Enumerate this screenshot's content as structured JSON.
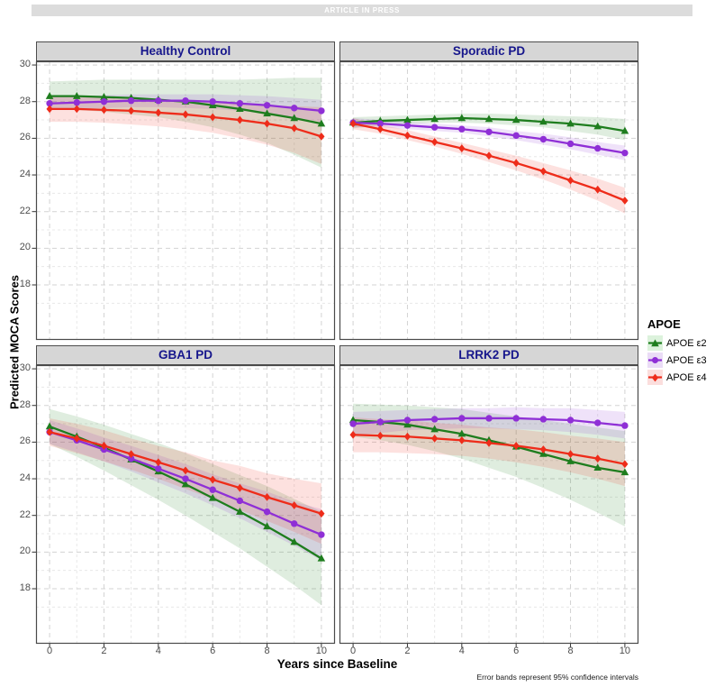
{
  "banner": {
    "text": "ARTICLE IN PRESS"
  },
  "chart_data": {
    "type": "line",
    "xlabel": "Years since Baseline",
    "ylabel": "Predicted MOCA Scores",
    "caption": "Error bands represent 95% confidence intervals",
    "x": [
      0,
      1,
      2,
      3,
      4,
      5,
      6,
      7,
      8,
      9,
      10
    ],
    "x_ticks": [
      0,
      2,
      4,
      6,
      8,
      10
    ],
    "y_ticks": [
      18,
      20,
      22,
      24,
      26,
      28,
      30
    ],
    "xlim": [
      -0.5,
      10.5
    ],
    "ylim": [
      15.0,
      30.2
    ],
    "grid": "dashed, major and minor, on white background",
    "error_band": "95% confidence interval ribbons around each line",
    "legend": {
      "title": "APOE",
      "position": "right",
      "entries": [
        {
          "id": "e2",
          "label": "APOE ε2",
          "color": "#1e7d1e",
          "key_fill": "#dcf2dc",
          "marker": "triangle"
        },
        {
          "id": "e3",
          "label": "APOE ε3",
          "color": "#8f2fd6",
          "key_fill": "#eadcf6",
          "marker": "circle"
        },
        {
          "id": "e4",
          "label": "APOE ε4",
          "color": "#ee2c1a",
          "key_fill": "#fbdedd",
          "marker": "diamond"
        }
      ]
    },
    "panels": [
      {
        "title": "Healthy Control",
        "series": [
          {
            "id": "e2",
            "values": [
              28.3,
              28.3,
              28.25,
              28.2,
              28.1,
              28.0,
              27.8,
              27.6,
              27.35,
              27.1,
              26.8
            ],
            "lower": [
              27.6,
              27.55,
              27.45,
              27.3,
              27.15,
              26.9,
              26.6,
              26.2,
              25.75,
              25.1,
              24.4
            ],
            "upper": [
              29.1,
              29.15,
              29.2,
              29.2,
              29.2,
              29.2,
              29.2,
              29.2,
              29.25,
              29.3,
              29.3
            ]
          },
          {
            "id": "e3",
            "values": [
              27.9,
              27.95,
              28.0,
              28.05,
              28.05,
              28.05,
              28.0,
              27.9,
              27.8,
              27.65,
              27.5
            ],
            "lower": [
              27.55,
              27.6,
              27.65,
              27.7,
              27.7,
              27.65,
              27.6,
              27.5,
              27.35,
              27.15,
              26.9
            ],
            "upper": [
              28.25,
              28.3,
              28.35,
              28.4,
              28.4,
              28.4,
              28.4,
              28.35,
              28.3,
              28.2,
              28.1
            ]
          },
          {
            "id": "e4",
            "values": [
              27.6,
              27.6,
              27.55,
              27.5,
              27.4,
              27.3,
              27.15,
              27.0,
              26.8,
              26.55,
              26.1
            ],
            "lower": [
              26.9,
              26.9,
              26.85,
              26.75,
              26.65,
              26.5,
              26.3,
              26.0,
              25.65,
              25.2,
              24.6
            ],
            "upper": [
              28.3,
              28.3,
              28.25,
              28.2,
              28.1,
              28.05,
              27.95,
              27.9,
              27.8,
              27.75,
              27.7
            ]
          }
        ]
      },
      {
        "title": "Sporadic PD",
        "series": [
          {
            "id": "e2",
            "values": [
              26.85,
              26.95,
              27.0,
              27.05,
              27.1,
              27.05,
              27.0,
              26.9,
              26.8,
              26.65,
              26.4
            ],
            "lower": [
              26.55,
              26.7,
              26.8,
              26.85,
              26.85,
              26.8,
              26.7,
              26.6,
              26.4,
              26.2,
              25.9
            ],
            "upper": [
              27.15,
              27.2,
              27.25,
              27.3,
              27.35,
              27.35,
              27.3,
              27.25,
              27.2,
              27.15,
              27.05
            ]
          },
          {
            "id": "e3",
            "values": [
              26.85,
              26.8,
              26.7,
              26.6,
              26.5,
              26.35,
              26.15,
              25.95,
              25.7,
              25.45,
              25.2
            ],
            "lower": [
              26.6,
              26.6,
              26.5,
              26.4,
              26.3,
              26.1,
              25.9,
              25.65,
              25.4,
              25.1,
              24.8
            ],
            "upper": [
              27.1,
              27.0,
              26.9,
              26.8,
              26.7,
              26.6,
              26.4,
              26.25,
              26.05,
              25.8,
              25.6
            ]
          },
          {
            "id": "e4",
            "values": [
              26.8,
              26.5,
              26.15,
              25.8,
              25.45,
              25.05,
              24.65,
              24.2,
              23.7,
              23.2,
              22.6
            ],
            "lower": [
              26.5,
              26.25,
              25.9,
              25.55,
              25.15,
              24.7,
              24.25,
              23.75,
              23.2,
              22.6,
              21.9
            ],
            "upper": [
              27.1,
              26.75,
              26.45,
              26.1,
              25.75,
              25.4,
              25.05,
              24.65,
              24.25,
              23.8,
              23.3
            ]
          }
        ]
      },
      {
        "title": "GBA1 PD",
        "series": [
          {
            "id": "e2",
            "values": [
              26.85,
              26.3,
              25.7,
              25.05,
              24.4,
              23.7,
              22.95,
              22.2,
              21.4,
              20.55,
              19.65
            ],
            "lower": [
              25.9,
              25.2,
              24.45,
              23.65,
              22.85,
              22.0,
              21.1,
              20.2,
              19.2,
              18.2,
              17.1
            ],
            "upper": [
              27.8,
              27.4,
              26.95,
              26.45,
              25.95,
              25.4,
              24.8,
              24.2,
              23.6,
              22.9,
              22.2
            ]
          },
          {
            "id": "e3",
            "values": [
              26.55,
              26.1,
              25.6,
              25.1,
              24.55,
              24.0,
              23.4,
              22.8,
              22.2,
              21.55,
              20.95
            ],
            "lower": [
              25.9,
              25.45,
              24.95,
              24.4,
              23.8,
              23.2,
              22.55,
              21.85,
              21.1,
              20.35,
              19.55
            ],
            "upper": [
              27.2,
              26.75,
              26.25,
              25.8,
              25.3,
              24.8,
              24.25,
              23.75,
              23.3,
              22.75,
              22.35
            ]
          },
          {
            "id": "e4",
            "values": [
              26.55,
              26.2,
              25.8,
              25.35,
              24.9,
              24.45,
              23.95,
              23.5,
              23.0,
              22.55,
              22.1
            ],
            "lower": [
              25.8,
              25.4,
              24.95,
              24.5,
              24.0,
              23.45,
              22.9,
              22.3,
              21.7,
              21.1,
              20.45
            ],
            "upper": [
              27.3,
              27.0,
              26.65,
              26.2,
              25.8,
              25.45,
              25.0,
              24.7,
              24.3,
              24.0,
              23.75
            ]
          }
        ]
      },
      {
        "title": "LRRK2 PD",
        "series": [
          {
            "id": "e2",
            "values": [
              27.2,
              27.1,
              26.95,
              26.7,
              26.45,
              26.1,
              25.75,
              25.35,
              24.95,
              24.6,
              24.35
            ],
            "lower": [
              26.3,
              26.1,
              25.85,
              25.5,
              25.1,
              24.6,
              24.1,
              23.5,
              22.85,
              22.15,
              21.4
            ],
            "upper": [
              28.1,
              28.05,
              28.0,
              27.9,
              27.8,
              27.6,
              27.4,
              27.2,
              27.0,
              26.8,
              26.6
            ]
          },
          {
            "id": "e3",
            "values": [
              27.0,
              27.1,
              27.2,
              27.25,
              27.3,
              27.3,
              27.3,
              27.25,
              27.2,
              27.05,
              26.9
            ],
            "lower": [
              26.35,
              26.5,
              26.65,
              26.7,
              26.75,
              26.75,
              26.7,
              26.65,
              26.55,
              26.4,
              26.2
            ],
            "upper": [
              27.65,
              27.7,
              27.75,
              27.8,
              27.85,
              27.85,
              27.9,
              27.85,
              27.85,
              27.75,
              27.65
            ]
          },
          {
            "id": "e4",
            "values": [
              26.4,
              26.35,
              26.3,
              26.2,
              26.1,
              25.95,
              25.8,
              25.6,
              25.35,
              25.1,
              24.8
            ],
            "lower": [
              25.45,
              25.45,
              25.4,
              25.35,
              25.25,
              25.1,
              24.9,
              24.65,
              24.35,
              24.0,
              23.6
            ],
            "upper": [
              27.35,
              27.25,
              27.2,
              27.05,
              26.95,
              26.8,
              26.7,
              26.55,
              26.35,
              26.2,
              26.0
            ]
          }
        ]
      }
    ],
    "style": {
      "strip_bg": "#d6d6d6",
      "strip_text_color": "#16168c",
      "panel_border_color": "#4a4a4a",
      "grid_major_color": "#d3d3d3",
      "grid_minor_color": "#e8e8e8",
      "ribbon_opacity": 0.14
    }
  }
}
